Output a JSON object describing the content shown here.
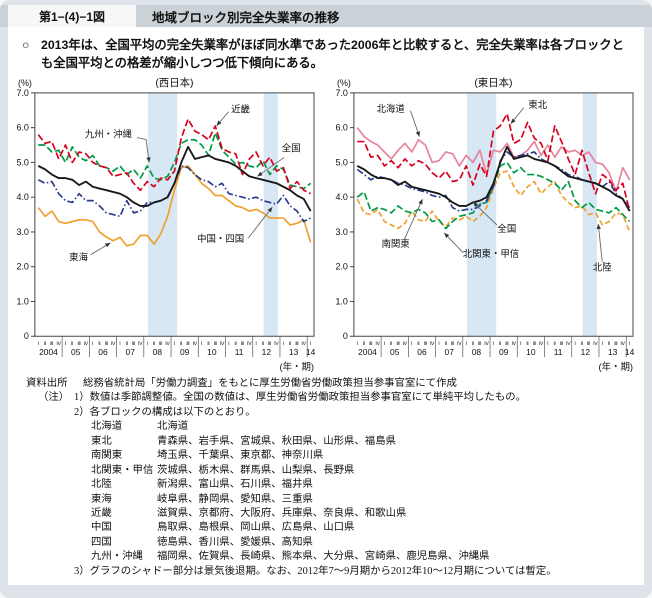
{
  "colors": {
    "page_bg": "#dde3e9",
    "header_band": "#cbd2d7",
    "figure_box": "#f6f7f8",
    "recession_band": "#d7e7f4",
    "national": "#1a1a1a",
    "red": "#d7001e",
    "green": "#009a44",
    "blue": "#2a3b8f",
    "orange": "#f0a02e",
    "pink": "#e8839a"
  },
  "header": {
    "figure_no": "第1−(4)−1図",
    "title": "地域ブロック別完全失業率の推移"
  },
  "summary": {
    "marker": "○",
    "text": "2013年は、全国平均の完全失業率がほぼ同水準であった2006年と比較すると、完全失業率は各ブロックとも全国平均との格差が縮小しつつ低下傾向にある。"
  },
  "chart_data": [
    {
      "type": "line",
      "title": "(西日本)",
      "unit_label": "(%)",
      "xaxis_label": "(年・期)",
      "ylim": [
        0,
        7
      ],
      "yticks": [
        "7.0",
        "6.0",
        "5.0",
        "4.0",
        "3.0",
        "2.0",
        "1.0",
        "0"
      ],
      "years": [
        "2004",
        "05",
        "06",
        "07",
        "08",
        "09",
        "10",
        "11",
        "12",
        "13",
        "14"
      ],
      "quarter_labels": [
        "Ⅰ",
        "Ⅱ",
        "Ⅲ",
        "Ⅳ"
      ],
      "band_color": "#d7e7f4",
      "recession_bands": [
        [
          16.6,
          20.9
        ],
        [
          33.6,
          35.7
        ]
      ],
      "series": [
        {
          "name": "東海",
          "color": "#f0a02e",
          "style": "solid",
          "values": [
            3.7,
            3.45,
            3.6,
            3.3,
            3.25,
            3.3,
            3.35,
            3.35,
            3.3,
            3.0,
            2.85,
            2.75,
            2.85,
            2.6,
            2.65,
            2.9,
            2.9,
            2.65,
            2.95,
            3.45,
            4.2,
            4.85,
            4.9,
            4.65,
            4.4,
            4.25,
            4.05,
            4.05,
            3.9,
            3.75,
            3.7,
            3.6,
            3.65,
            3.55,
            3.4,
            3.4,
            3.4,
            3.2,
            3.25,
            3.35,
            2.7
          ]
        },
        {
          "name": "中国・四国",
          "color": "#2a3b8f",
          "style": "dashdot",
          "values": [
            4.5,
            4.4,
            4.45,
            4.1,
            3.9,
            3.85,
            4.1,
            3.9,
            3.9,
            3.75,
            3.55,
            3.5,
            3.45,
            3.9,
            3.55,
            3.6,
            3.85,
            3.85,
            3.9,
            4.0,
            4.4,
            4.9,
            4.85,
            4.65,
            4.5,
            4.45,
            4.3,
            4.4,
            4.1,
            4.05,
            4.0,
            3.95,
            4.0,
            3.9,
            3.85,
            3.8,
            4.05,
            3.75,
            3.6,
            3.3,
            3.4
          ]
        },
        {
          "name": "九州・沖縄",
          "color": "#009a44",
          "style": "dashed",
          "values": [
            5.5,
            5.5,
            5.3,
            5.35,
            5.0,
            5.45,
            5.15,
            5.05,
            5.2,
            4.9,
            4.85,
            4.75,
            4.9,
            4.65,
            4.8,
            4.55,
            4.9,
            4.55,
            4.5,
            4.6,
            5.0,
            5.55,
            5.65,
            5.65,
            5.5,
            5.2,
            5.85,
            5.35,
            5.15,
            4.95,
            5.0,
            4.9,
            4.85,
            5.05,
            4.65,
            4.9,
            4.8,
            4.35,
            4.3,
            4.25,
            4.4
          ]
        },
        {
          "name": "近畿",
          "color": "#d7001e",
          "style": "dashed",
          "values": [
            5.8,
            5.55,
            5.6,
            5.1,
            5.5,
            5.0,
            5.3,
            5.25,
            5.0,
            4.9,
            4.85,
            4.6,
            4.65,
            4.7,
            4.4,
            4.2,
            4.45,
            4.3,
            4.55,
            4.5,
            4.75,
            5.7,
            6.25,
            5.9,
            5.8,
            5.65,
            6.05,
            5.4,
            5.3,
            5.25,
            4.65,
            5.1,
            5.3,
            4.9,
            5.15,
            4.75,
            4.85,
            4.25,
            4.45,
            4.2,
            4.1
          ]
        },
        {
          "name": "全国",
          "color": "#1a1a1a",
          "style": "solid",
          "values": [
            4.9,
            4.8,
            4.65,
            4.55,
            4.55,
            4.5,
            4.35,
            4.45,
            4.3,
            4.25,
            4.2,
            4.15,
            4.1,
            4.0,
            3.85,
            3.75,
            3.75,
            3.85,
            3.9,
            4.0,
            4.4,
            5.0,
            5.45,
            5.1,
            5.15,
            5.2,
            5.1,
            5.05,
            5.0,
            4.9,
            4.75,
            4.6,
            4.55,
            4.5,
            4.45,
            4.4,
            4.3,
            4.2,
            4.05,
            3.95,
            3.6
          ]
        }
      ],
      "annotations": [
        {
          "label": "近畿",
          "at": [
            233,
            38
          ],
          "line": [
            [
              221,
              37
            ],
            [
              209,
              51
            ]
          ]
        },
        {
          "label": "九州・沖縄",
          "at": [
            100,
            63
          ],
          "line": [
            [
              129,
              63
            ],
            [
              138,
              65
            ],
            [
              141,
              88
            ]
          ]
        },
        {
          "label": "全国",
          "at": [
            284,
            77
          ],
          "line": [
            [
              277,
              83
            ],
            [
              250,
              102
            ]
          ]
        },
        {
          "label": "中国・四国",
          "at": [
            213,
            168
          ],
          "line": [
            [
              241,
              164
            ],
            [
              265,
              133
            ]
          ]
        },
        {
          "label": "東海",
          "at": [
            70,
            187
          ],
          "line": [
            [
              82,
              181
            ],
            [
              102,
              169
            ]
          ]
        }
      ]
    },
    {
      "type": "line",
      "title": "(東日本)",
      "unit_label": "(%)",
      "xaxis_label": "(年・期)",
      "ylim": [
        0,
        7
      ],
      "yticks": [
        "7.0",
        "6.0",
        "5.0",
        "4.0",
        "3.0",
        "2.0",
        "1.0",
        "0"
      ],
      "years": [
        "2004",
        "05",
        "06",
        "07",
        "08",
        "09",
        "10",
        "11",
        "12",
        "13",
        "14"
      ],
      "quarter_labels": [
        "Ⅰ",
        "Ⅱ",
        "Ⅲ",
        "Ⅳ"
      ],
      "band_color": "#d7e7f4",
      "recession_bands": [
        [
          16.6,
          20.9
        ],
        [
          33.6,
          35.7
        ]
      ],
      "series": [
        {
          "name": "北陸",
          "color": "#f0a02e",
          "style": "shortdash",
          "values": [
            3.95,
            3.55,
            3.5,
            3.65,
            3.3,
            3.2,
            3.1,
            3.25,
            3.6,
            3.35,
            3.3,
            3.6,
            3.3,
            3.15,
            3.4,
            3.35,
            3.45,
            3.3,
            3.45,
            3.7,
            4.25,
            4.7,
            4.75,
            4.3,
            4.05,
            4.3,
            4.45,
            4.1,
            4.3,
            4.45,
            4.05,
            3.85,
            3.7,
            3.75,
            3.5,
            3.55,
            3.2,
            3.3,
            3.55,
            3.5,
            3.0
          ]
        },
        {
          "name": "北海道",
          "color": "#e8839a",
          "style": "solid",
          "values": [
            6.0,
            5.75,
            5.6,
            5.5,
            5.3,
            5.1,
            5.35,
            5.55,
            5.3,
            5.65,
            5.5,
            5.0,
            5.05,
            5.3,
            5.25,
            4.9,
            5.2,
            5.0,
            5.35,
            4.65,
            5.35,
            5.3,
            5.55,
            5.15,
            5.2,
            5.35,
            5.6,
            5.2,
            5.5,
            5.15,
            5.45,
            5.3,
            5.35,
            5.2,
            5.3,
            5.0,
            4.95,
            4.7,
            4.15,
            4.85,
            4.5
          ]
        },
        {
          "name": "北関東・甲信",
          "color": "#009a44",
          "style": "dashed",
          "values": [
            4.0,
            4.15,
            3.6,
            3.7,
            3.65,
            3.55,
            3.75,
            3.6,
            3.55,
            3.65,
            3.55,
            3.3,
            3.35,
            3.1,
            3.3,
            3.45,
            3.5,
            3.55,
            3.8,
            3.85,
            4.35,
            4.9,
            5.0,
            4.7,
            4.85,
            4.65,
            4.65,
            4.6,
            4.5,
            4.4,
            4.2,
            4.45,
            3.9,
            3.7,
            3.85,
            3.65,
            3.6,
            3.55,
            3.7,
            3.5,
            3.3
          ]
        },
        {
          "name": "南関東",
          "color": "#2a3b8f",
          "style": "dashdot",
          "values": [
            4.8,
            4.65,
            4.5,
            4.6,
            4.55,
            4.5,
            4.4,
            4.35,
            4.25,
            4.2,
            4.15,
            4.05,
            4.0,
            4.05,
            3.7,
            3.6,
            3.65,
            3.65,
            3.75,
            3.9,
            4.3,
            5.05,
            5.3,
            5.15,
            5.2,
            5.25,
            5.3,
            5.1,
            5.0,
            4.9,
            4.8,
            4.65,
            4.6,
            4.5,
            4.45,
            4.4,
            4.3,
            4.45,
            4.1,
            3.95,
            3.7
          ]
        },
        {
          "name": "東北",
          "color": "#d7001e",
          "style": "dashed",
          "values": [
            5.6,
            5.6,
            5.15,
            5.2,
            4.9,
            5.05,
            4.85,
            5.1,
            4.9,
            5.05,
            4.95,
            4.7,
            4.55,
            4.75,
            4.45,
            4.5,
            4.9,
            4.35,
            4.95,
            4.6,
            5.9,
            6.05,
            6.4,
            5.55,
            5.65,
            6.15,
            5.7,
            5.55,
            5.05,
            6.05,
            5.6,
            5.1,
            4.65,
            5.35,
            4.7,
            4.1,
            4.65,
            4.5,
            4.2,
            4.4,
            3.6
          ]
        },
        {
          "name": "全国",
          "color": "#1a1a1a",
          "style": "solid",
          "values": [
            4.9,
            4.8,
            4.65,
            4.55,
            4.55,
            4.5,
            4.35,
            4.45,
            4.3,
            4.25,
            4.2,
            4.15,
            4.1,
            4.0,
            3.85,
            3.75,
            3.75,
            3.85,
            3.9,
            4.0,
            4.4,
            5.0,
            5.45,
            5.1,
            5.15,
            5.2,
            5.1,
            5.05,
            5.0,
            4.9,
            4.75,
            4.6,
            4.55,
            4.5,
            4.45,
            4.4,
            4.3,
            4.2,
            4.05,
            3.95,
            3.6
          ]
        }
      ],
      "annotations": [
        {
          "label": "北海道",
          "at": [
            63,
            37
          ],
          "line": [
            [
              83,
              36
            ],
            [
              92,
              62
            ]
          ]
        },
        {
          "label": "東北",
          "at": [
            211,
            33
          ],
          "line": [
            [
              197,
              33
            ],
            [
              184,
              49
            ]
          ]
        },
        {
          "label": "全国",
          "at": [
            180,
            158
          ],
          "line": [
            [
              170,
              151
            ],
            [
              146,
              128
            ]
          ]
        },
        {
          "label": "南関東",
          "at": [
            68,
            173
          ],
          "line": [
            [
              77,
              165
            ],
            [
              95,
              125
            ]
          ]
        },
        {
          "label": "北関東・甲信",
          "at": [
            164,
            183
          ],
          "line": [
            [
              136,
              179
            ],
            [
              117,
              159
            ]
          ]
        },
        {
          "label": "北陸",
          "at": [
            276,
            197
          ],
          "line": [
            [
              276,
              188
            ],
            [
              272,
              150
            ]
          ]
        }
      ]
    }
  ],
  "notes": {
    "source_label": "資料出所",
    "source_text": "総務省統計局「労働力調査」をもとに厚生労働省労働政策担当参事官室にて作成",
    "note_label": "（注）",
    "item1": "1）数値は季節調整値。全国の数値は、厚生労働省労働政策担当参事官室にて単純平均したもの。",
    "item2": "2）各ブロックの構成は以下のとおり。",
    "item3": "3）グラフのシャドー部分は景気後退期。なお、2012年7～9月期から2012年10～12月期については暫定。",
    "blocks": [
      {
        "name": "北海道",
        "prefs": "北海道"
      },
      {
        "name": "東北",
        "prefs": "青森県、岩手県、宮城県、秋田県、山形県、福島県"
      },
      {
        "name": "南関東",
        "prefs": "埼玉県、千葉県、東京都、神奈川県"
      },
      {
        "name": "北関東・甲信",
        "prefs": "茨城県、栃木県、群馬県、山梨県、長野県"
      },
      {
        "name": "北陸",
        "prefs": "新潟県、富山県、石川県、福井県"
      },
      {
        "name": "東海",
        "prefs": "岐阜県、静岡県、愛知県、三重県"
      },
      {
        "name": "近畿",
        "prefs": "滋賀県、京都府、大阪府、兵庫県、奈良県、和歌山県"
      },
      {
        "name": "中国",
        "prefs": "鳥取県、島根県、岡山県、広島県、山口県"
      },
      {
        "name": "四国",
        "prefs": "徳島県、香川県、愛媛県、高知県"
      },
      {
        "name": "九州・沖縄",
        "prefs": "福岡県、佐賀県、長崎県、熊本県、大分県、宮崎県、鹿児島県、沖縄県"
      }
    ]
  }
}
